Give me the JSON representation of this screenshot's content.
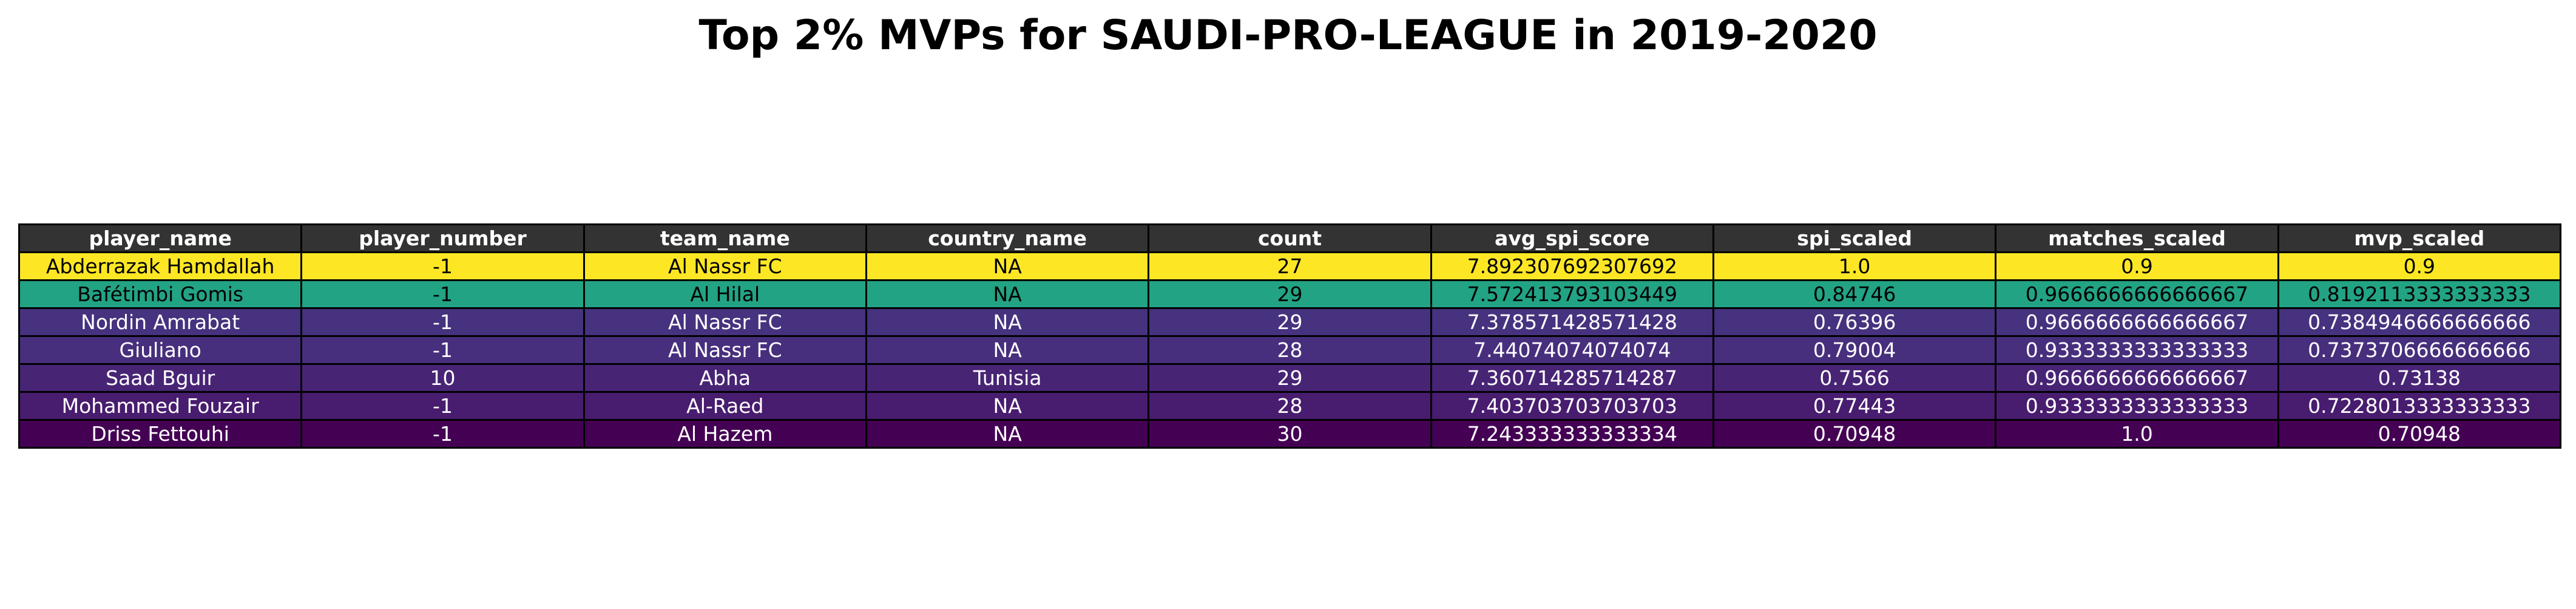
{
  "title": "Top 2% MVPs for SAUDI-PRO-LEAGUE in 2019-2020",
  "chart_data": {
    "type": "table",
    "title": "Top 2% MVPs for SAUDI-PRO-LEAGUE in 2019-2020",
    "columns": [
      "player_name",
      "player_number",
      "team_name",
      "country_name",
      "count",
      "avg_spi_score",
      "spi_scaled",
      "matches_scaled",
      "mvp_scaled"
    ],
    "rows": [
      {
        "cells": [
          "Abderrazak Hamdallah",
          "-1",
          "Al Nassr FC",
          "NA",
          "27",
          "7.892307692307692",
          "1.0",
          "0.9",
          "0.9"
        ],
        "bg": "#fde725",
        "fg": "#000000"
      },
      {
        "cells": [
          "Bafétimbi Gomis",
          "-1",
          "Al Hilal",
          "NA",
          "29",
          "7.572413793103449",
          "0.84746",
          "0.9666666666666667",
          "0.8192113333333333"
        ],
        "bg": "#22a384",
        "fg": "#000000"
      },
      {
        "cells": [
          "Nordin Amrabat",
          "-1",
          "Al Nassr FC",
          "NA",
          "29",
          "7.378571428571428",
          "0.76396",
          "0.9666666666666667",
          "0.7384946666666666"
        ],
        "bg": "#46327e",
        "fg": "#ffffff"
      },
      {
        "cells": [
          "Giuliano",
          "-1",
          "Al Nassr FC",
          "NA",
          "28",
          "7.44074074074074",
          "0.79004",
          "0.9333333333333333",
          "0.7373706666666666"
        ],
        "bg": "#472f7d",
        "fg": "#ffffff"
      },
      {
        "cells": [
          "Saad Bguir",
          "10",
          "Abha",
          "Tunisia",
          "29",
          "7.360714285714287",
          "0.7566",
          "0.9666666666666667",
          "0.73138"
        ],
        "bg": "#482475",
        "fg": "#ffffff"
      },
      {
        "cells": [
          "Mohammed Fouzair",
          "-1",
          "Al-Raed",
          "NA",
          "28",
          "7.403703703703703",
          "0.77443",
          "0.9333333333333333",
          "0.7228013333333333"
        ],
        "bg": "#481c6e",
        "fg": "#ffffff"
      },
      {
        "cells": [
          "Driss Fettouhi",
          "-1",
          "Al Hazem",
          "NA",
          "30",
          "7.243333333333334",
          "0.70948",
          "1.0",
          "0.70948"
        ],
        "bg": "#440154",
        "fg": "#ffffff"
      }
    ]
  }
}
